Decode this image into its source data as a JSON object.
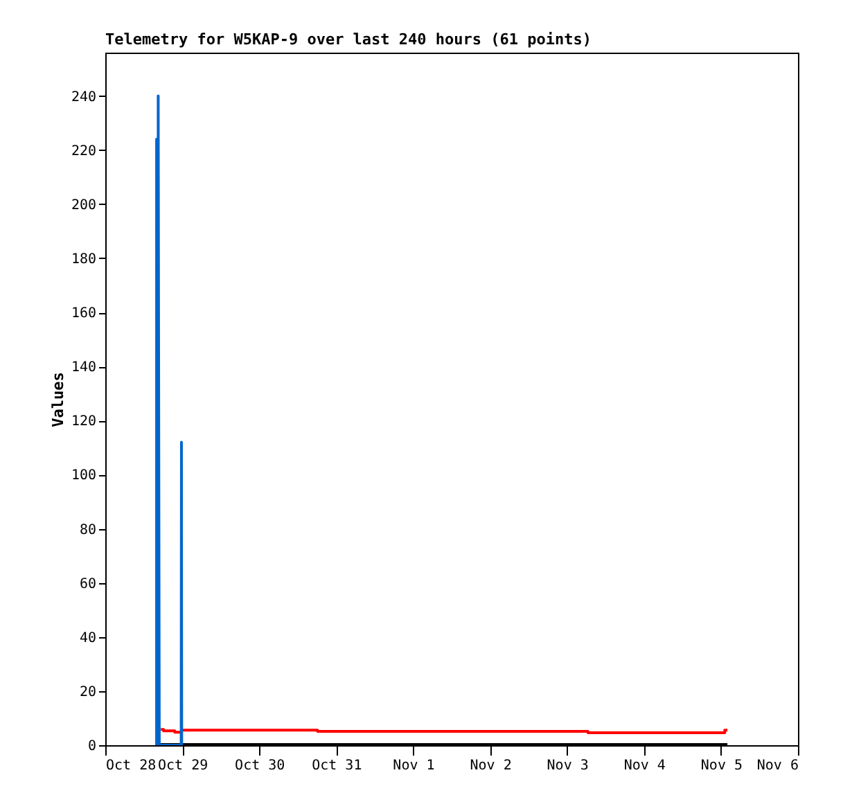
{
  "chart_data": {
    "type": "line",
    "title": "Telemetry for W5KAP-9 over last 240 hours (61 points)",
    "ylabel": "Values",
    "xlim": [
      "--10-28",
      "--11-06"
    ],
    "xticks": [
      {
        "value": "--10-28",
        "label": "Oct 28"
      },
      {
        "value": "--10-29",
        "label": "Oct 29"
      },
      {
        "value": "--10-30",
        "label": "Oct 30"
      },
      {
        "value": "--10-31",
        "label": "Oct 31"
      },
      {
        "value": "--11-01",
        "label": "Nov 1"
      },
      {
        "value": "--11-02",
        "label": "Nov 2"
      },
      {
        "value": "--11-03",
        "label": "Nov 3"
      },
      {
        "value": "--11-04",
        "label": "Nov 4"
      },
      {
        "value": "--11-05",
        "label": "Nov 5"
      },
      {
        "value": "--11-06",
        "label": "Nov 6"
      }
    ],
    "ylim": [
      0,
      256
    ],
    "yticks": [
      0,
      20,
      40,
      60,
      80,
      100,
      120,
      140,
      160,
      180,
      200,
      220,
      240
    ],
    "grid": false,
    "series": [
      {
        "color": "#000000",
        "x": [
          "--10-28T16:00",
          "--11-05T02:00"
        ],
        "values": [
          0,
          0
        ]
      },
      {
        "color": "#ff0000",
        "x": [
          "--10-28T17:20",
          "--10-28T18:10",
          "--10-28T18:10",
          "--10-28T21:40",
          "--10-28T21:40",
          "--10-28T23:45",
          "--10-28T23:45",
          "--10-30T18:10",
          "--10-30T18:10",
          "--11-03T06:30",
          "--11-03T06:30",
          "--11-05T01:10",
          "--11-05T01:10",
          "--11-05T02:00"
        ],
        "values": [
          5.8,
          5.8,
          5.3,
          5.3,
          4.8,
          4.8,
          5.6,
          5.6,
          5.1,
          5.1,
          4.6,
          4.6,
          5.6,
          5.6
        ]
      },
      {
        "color": "#0066cc",
        "x": [
          "--10-28T16:00",
          "--10-28T16:00",
          "--10-28T16:30",
          "--10-28T16:30",
          "--10-28T16:50",
          "--10-28T23:40",
          "--10-28T23:45",
          "--10-28T23:50"
        ],
        "values": [
          0,
          224,
          224,
          240,
          0,
          0,
          112,
          0
        ]
      }
    ]
  }
}
